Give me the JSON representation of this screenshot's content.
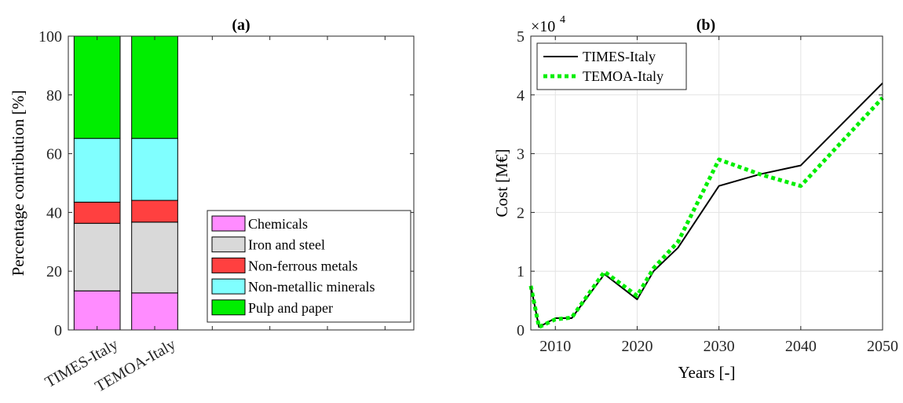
{
  "chart_data": [
    {
      "panel_label": "(a)",
      "type": "bar",
      "stacked": true,
      "ylabel": "Percentage contribution [%]",
      "ylim": [
        0,
        100
      ],
      "yticks": [
        "0",
        "20",
        "40",
        "60",
        "80",
        "100"
      ],
      "categories": [
        "TIMES-Italy",
        "TEMOA-Italy",
        "",
        "",
        "",
        ""
      ],
      "series": [
        {
          "name": "Chemicals",
          "color": "#ff8cff",
          "values": [
            13.3,
            12.6,
            0,
            0,
            0,
            0
          ]
        },
        {
          "name": "Iron and steel",
          "color": "#d9d9d9",
          "values": [
            23.0,
            24.1,
            0,
            0,
            0,
            0
          ]
        },
        {
          "name": "Non-ferrous metals",
          "color": "#ff4040",
          "values": [
            7.2,
            7.4,
            0,
            0,
            0,
            0
          ]
        },
        {
          "name": "Non-metallic minerals",
          "color": "#80ffff",
          "values": [
            21.7,
            21.1,
            0,
            0,
            0,
            0
          ]
        },
        {
          "name": "Pulp and paper",
          "color": "#00ee00",
          "values": [
            34.8,
            34.8,
            0,
            0,
            0,
            0
          ]
        }
      ],
      "legend_position": "bottom-right",
      "grid": false
    },
    {
      "panel_label": "(b)",
      "type": "line",
      "xlabel": "Years [-]",
      "ylabel": "Cost [M€]",
      "y_exponent_prefix": "×10",
      "y_exponent": "4",
      "xlim": [
        2007,
        2050
      ],
      "ylim": [
        0,
        50000
      ],
      "xticks": [
        "2010",
        "2020",
        "2030",
        "2040",
        "2050"
      ],
      "yticks": [
        "0",
        "1",
        "2",
        "3",
        "4",
        "5"
      ],
      "grid": true,
      "legend_position": "top-left",
      "series": [
        {
          "name": "TIMES-Italy",
          "color": "#000000",
          "style": "solid",
          "x": [
            2007,
            2008,
            2010,
            2012,
            2016,
            2020,
            2022,
            2025,
            2030,
            2035,
            2040,
            2050
          ],
          "y": [
            7500,
            500,
            2000,
            2000,
            9500,
            5200,
            10000,
            14000,
            24500,
            26500,
            28000,
            42000
          ]
        },
        {
          "name": "TEMOA-Italy",
          "color": "#00ee00",
          "style": "dotted",
          "x": [
            2007,
            2008,
            2010,
            2012,
            2016,
            2020,
            2022,
            2025,
            2030,
            2035,
            2040,
            2050
          ],
          "y": [
            7500,
            500,
            1800,
            2100,
            9900,
            5800,
            10500,
            15000,
            29000,
            26500,
            24500,
            39500
          ]
        }
      ]
    }
  ]
}
